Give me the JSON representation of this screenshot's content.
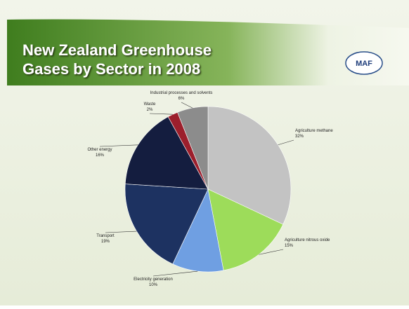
{
  "chart_data": {
    "type": "pie",
    "title": "New Zealand Greenhouse Gases by Sector in 2008",
    "logo": "MAF",
    "categories": [
      "Agriculture methane",
      "Agriculture nitrous oxide",
      "Electricity generation",
      "Transport",
      "Other energy",
      "Waste",
      "Industrial processes and solvents"
    ],
    "values": [
      32,
      15,
      10,
      19,
      16,
      2,
      6
    ],
    "value_labels": [
      "32%",
      "15%",
      "10%",
      "19%",
      "16%",
      "2%",
      "6%"
    ],
    "colors": [
      "#c3c3c3",
      "#9ddc5a",
      "#6f9fe2",
      "#1d3261",
      "#141d3f",
      "#9c1f2c",
      "#8c8c8c"
    ]
  }
}
